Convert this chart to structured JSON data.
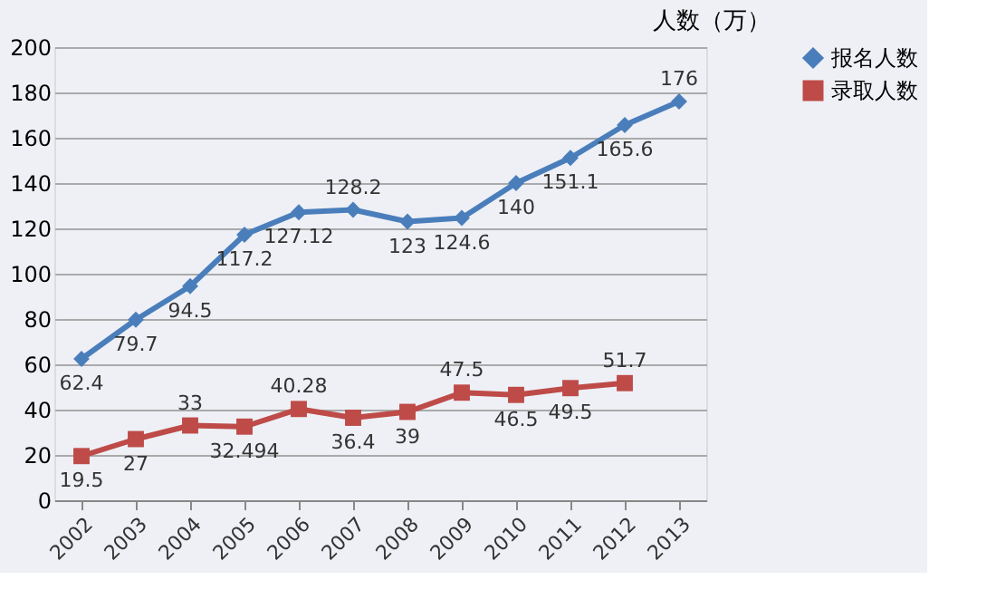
{
  "chart_data": {
    "type": "line",
    "ylabel": "人数（万）",
    "categories": [
      "2002",
      "2003",
      "2004",
      "2005",
      "2006",
      "2007",
      "2008",
      "2009",
      "2010",
      "2011",
      "2012",
      "2013"
    ],
    "series": [
      {
        "name": "报名人数",
        "color": "#4a7ebb",
        "marker": "diamond",
        "values": [
          62.4,
          79.7,
          94.5,
          117.2,
          127.12,
          128.2,
          123,
          124.6,
          140,
          151.1,
          165.6,
          176
        ]
      },
      {
        "name": "录取人数",
        "color": "#be4b48",
        "marker": "square",
        "values": [
          19.5,
          27,
          33,
          32.494,
          40.28,
          36.4,
          39,
          47.5,
          46.5,
          49.5,
          51.7,
          null
        ]
      }
    ],
    "ylim": [
      0,
      200
    ],
    "yticks": [
      0,
      20,
      40,
      60,
      80,
      100,
      120,
      140,
      160,
      180,
      200
    ],
    "grid": "y",
    "legend": "right",
    "data_labels": true
  }
}
